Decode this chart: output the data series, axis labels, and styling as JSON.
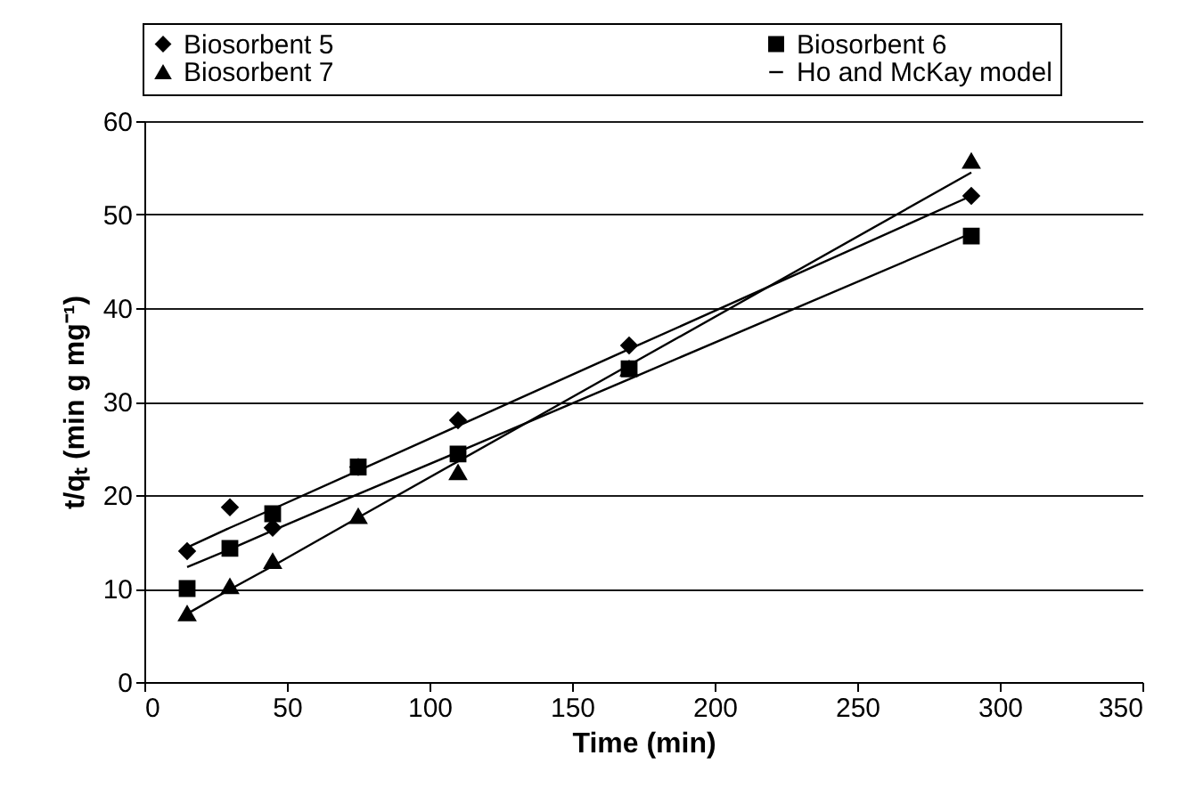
{
  "chart_data": {
    "type": "scatter",
    "xlabel": "Time (min)",
    "ylabel": "t/qₜ (min g mg⁻¹)",
    "xlim": [
      0,
      350
    ],
    "xticks": [
      0,
      50,
      100,
      150,
      200,
      250,
      300,
      350
    ],
    "ylim": [
      0,
      60
    ],
    "yticks": [
      0,
      10,
      20,
      30,
      40,
      50,
      60
    ],
    "grid": "y",
    "legend": "top",
    "series": [
      {
        "name": "Biosorbent 5",
        "color": "#000000",
        "marker": "diamond",
        "x": [
          15,
          30,
          45,
          75,
          110,
          170,
          290
        ],
        "values": [
          14,
          18.7,
          16.5,
          23,
          28,
          36,
          52
        ]
      },
      {
        "name": "Biosorbent 6",
        "color": "#000000",
        "marker": "square",
        "x": [
          15,
          30,
          45,
          75,
          110,
          170,
          290
        ],
        "values": [
          10,
          14.3,
          18,
          23,
          24.4,
          33.5,
          47.7
        ]
      },
      {
        "name": "Biosorbent 7",
        "color": "#000000",
        "marker": "triangle",
        "x": [
          15,
          30,
          45,
          75,
          110,
          170,
          290
        ],
        "values": [
          7.3,
          10.2,
          12.9,
          17.7,
          22.4,
          33.5,
          55.7
        ]
      },
      {
        "name": "Ho and McKay model",
        "type": "line",
        "color": "#000000",
        "x": [
          15,
          30,
          45,
          75,
          110,
          170,
          290
        ],
        "values": [
          14.4,
          16.5,
          18.5,
          22.6,
          27.4,
          35.6,
          52
        ]
      },
      {
        "type": "line",
        "color": "#000000",
        "x": [
          15,
          30,
          45,
          75,
          110,
          170,
          290
        ],
        "values": [
          12.3,
          14.2,
          16.2,
          20.1,
          24.6,
          32.4,
          48
        ]
      },
      {
        "type": "line",
        "color": "#000000",
        "x": [
          15,
          30,
          45,
          75,
          110,
          170,
          290
        ],
        "values": [
          7.3,
          9.9,
          12.4,
          17.6,
          23.6,
          33.9,
          54.5
        ]
      }
    ]
  }
}
